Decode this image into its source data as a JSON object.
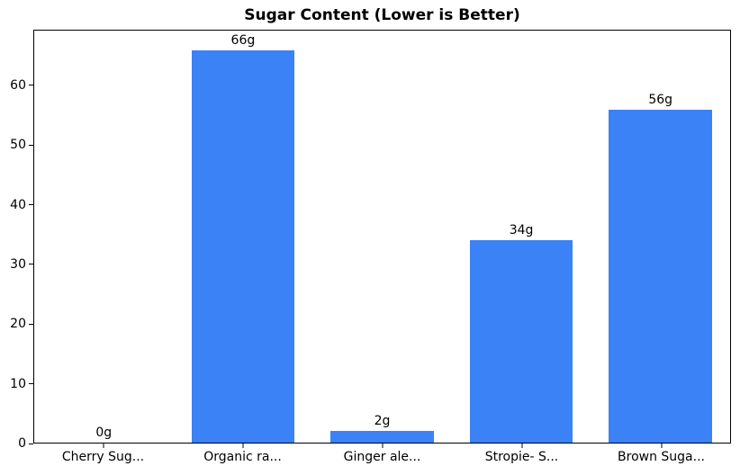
{
  "chart_data": {
    "type": "bar",
    "title": "Sugar Content (Lower is Better)",
    "categories": [
      "Cherry Sug...",
      "Organic ra...",
      "Ginger ale...",
      "Stropie- S...",
      "Brown Suga..."
    ],
    "values": [
      0,
      66,
      2,
      34,
      56
    ],
    "value_labels": [
      "0g",
      "66g",
      "2g",
      "34g",
      "56g"
    ],
    "xlabel": "",
    "ylabel": "",
    "ylim": [
      0,
      69.3
    ],
    "yticks": [
      0,
      10,
      20,
      30,
      40,
      50,
      60
    ],
    "bar_color": "#3b82f6",
    "bar_width_fraction": 0.74,
    "grid": false,
    "legend": "none",
    "frame": "full-box"
  }
}
